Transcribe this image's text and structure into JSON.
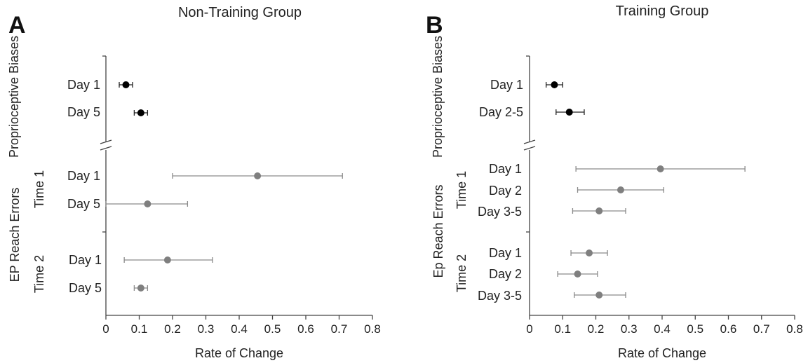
{
  "chart_data": [
    {
      "type": "scatter",
      "panel_letter": "A",
      "title": "Non-Training Group",
      "xlabel": "Rate of Change",
      "xlim": [
        0,
        0.8
      ],
      "x_ticks": [
        "0",
        "0.1",
        "0.2",
        "0.3",
        "0.4",
        "0.5",
        "0.6",
        "0.7",
        "0.8"
      ],
      "sections": [
        {
          "label": "Proprioceptive Biases",
          "color": "#000000",
          "subgroups": [
            {
              "label": "",
              "points": [
                {
                  "label": "Day 1",
                  "x": 0.06,
                  "lo": 0.04,
                  "hi": 0.08
                },
                {
                  "label": "Day 5",
                  "x": 0.105,
                  "lo": 0.085,
                  "hi": 0.125
                }
              ]
            }
          ]
        },
        {
          "label": "EP Reach Errors",
          "color": "#808080",
          "subgroups": [
            {
              "label": "Time 1",
              "points": [
                {
                  "label": "Day 1",
                  "x": 0.455,
                  "lo": 0.2,
                  "hi": 0.71
                },
                {
                  "label": "Day 5",
                  "x": 0.125,
                  "lo": 0.0,
                  "hi": 0.245
                }
              ]
            },
            {
              "label": "Time 2",
              "points": [
                {
                  "label": "Day 1",
                  "x": 0.185,
                  "lo": 0.055,
                  "hi": 0.32
                },
                {
                  "label": "Day 5",
                  "x": 0.105,
                  "lo": 0.085,
                  "hi": 0.125
                }
              ]
            }
          ]
        }
      ]
    },
    {
      "type": "scatter",
      "panel_letter": "B",
      "title": "Training Group",
      "xlabel": "Rate of Change",
      "xlim": [
        0,
        0.8
      ],
      "x_ticks": [
        "0",
        "0.1",
        "0.2",
        "0.3",
        "0.4",
        "0.5",
        "0.6",
        "0.7",
        "0.8"
      ],
      "sections": [
        {
          "label": "Proprioceptive Biases",
          "color": "#000000",
          "subgroups": [
            {
              "label": "",
              "points": [
                {
                  "label": "Day 1",
                  "x": 0.075,
                  "lo": 0.05,
                  "hi": 0.1
                },
                {
                  "label": "Day 2-5",
                  "x": 0.12,
                  "lo": 0.08,
                  "hi": 0.165
                }
              ]
            }
          ]
        },
        {
          "label": "Ep Reach Errors",
          "color": "#808080",
          "subgroups": [
            {
              "label": "Time 1",
              "points": [
                {
                  "label": "Day 1",
                  "x": 0.395,
                  "lo": 0.14,
                  "hi": 0.65
                },
                {
                  "label": "Day 2",
                  "x": 0.275,
                  "lo": 0.145,
                  "hi": 0.405
                },
                {
                  "label": "Day 3-5",
                  "x": 0.21,
                  "lo": 0.13,
                  "hi": 0.29
                }
              ]
            },
            {
              "label": "Time 2",
              "points": [
                {
                  "label": "Day 1",
                  "x": 0.18,
                  "lo": 0.125,
                  "hi": 0.235
                },
                {
                  "label": "Day 2",
                  "x": 0.145,
                  "lo": 0.085,
                  "hi": 0.205
                },
                {
                  "label": "Day 3-5",
                  "x": 0.21,
                  "lo": 0.135,
                  "hi": 0.29
                }
              ]
            }
          ]
        }
      ]
    }
  ]
}
